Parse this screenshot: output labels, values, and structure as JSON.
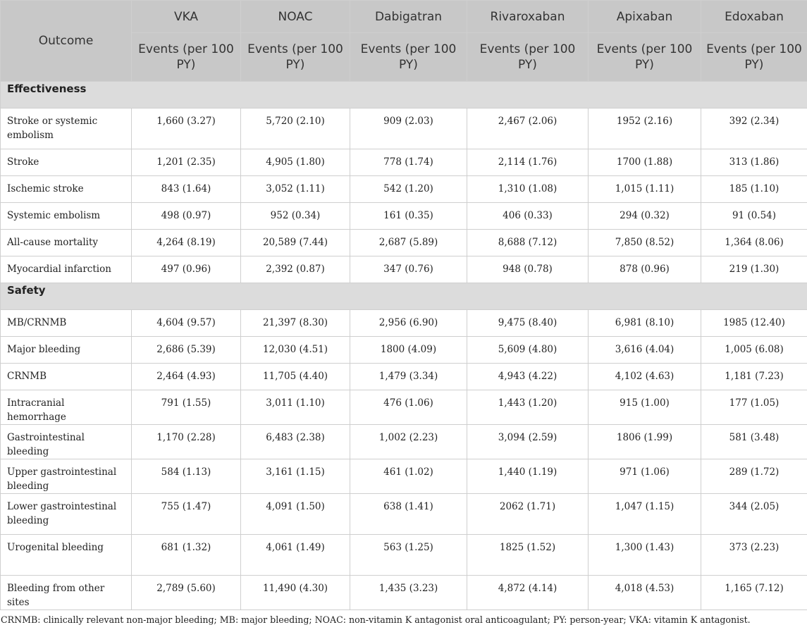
{
  "table": {
    "headers": {
      "outcome": "Outcome",
      "columns": [
        "VKA",
        "NOAC",
        "Dabigatran",
        "Rivaroxaban",
        "Apixaban",
        "Edoxaban"
      ],
      "subheader": "Events (per 100 PY)"
    },
    "sections": [
      {
        "title": "Effectiveness",
        "rows": [
          {
            "outcome": "Stroke or systemic embolism",
            "values": [
              "1,660 (3.27)",
              "5,720 (2.10)",
              "909 (2.03)",
              "2,467 (2.06)",
              "1952 (2.16)",
              "392 (2.34)"
            ]
          },
          {
            "outcome": "Stroke",
            "values": [
              "1,201 (2.35)",
              "4,905 (1.80)",
              "778 (1.74)",
              "2,114 (1.76)",
              "1700 (1.88)",
              "313 (1.86)"
            ]
          },
          {
            "outcome": "Ischemic stroke",
            "values": [
              "843 (1.64)",
              "3,052 (1.11)",
              "542 (1.20)",
              "1,310 (1.08)",
              "1,015 (1.11)",
              "185 (1.10)"
            ]
          },
          {
            "outcome": "Systemic embolism",
            "values": [
              "498 (0.97)",
              "952 (0.34)",
              "161 (0.35)",
              "406 (0.33)",
              "294 (0.32)",
              "91 (0.54)"
            ]
          },
          {
            "outcome": "All-cause mortality",
            "values": [
              "4,264 (8.19)",
              "20,589 (7.44)",
              "2,687 (5.89)",
              "8,688 (7.12)",
              "7,850 (8.52)",
              "1,364 (8.06)"
            ]
          },
          {
            "outcome": "Myocardial infarction",
            "values": [
              "497 (0.96)",
              "2,392 (0.87)",
              "347 (0.76)",
              "948 (0.78)",
              "878 (0.96)",
              "219 (1.30)"
            ]
          }
        ]
      },
      {
        "title": "Safety",
        "rows": [
          {
            "outcome": "MB/CRNMB",
            "values": [
              "4,604 (9.57)",
              "21,397 (8.30)",
              "2,956 (6.90)",
              "9,475 (8.40)",
              "6,981 (8.10)",
              "1985 (12.40)"
            ]
          },
          {
            "outcome": "Major bleeding",
            "values": [
              "2,686 (5.39)",
              "12,030 (4.51)",
              "1800 (4.09)",
              "5,609 (4.80)",
              "3,616 (4.04)",
              "1,005 (6.08)"
            ]
          },
          {
            "outcome": "CRNMB",
            "values": [
              "2,464 (4.93)",
              "11,705 (4.40)",
              "1,479 (3.34)",
              "4,943 (4.22)",
              "4,102 (4.63)",
              "1,181 (7.23)"
            ]
          },
          {
            "outcome": "Intracranial hemorrhage",
            "values": [
              "791 (1.55)",
              "3,011 (1.10)",
              "476 (1.06)",
              "1,443 (1.20)",
              "915 (1.00)",
              "177 (1.05)"
            ]
          },
          {
            "outcome": "Gastrointestinal bleeding",
            "values": [
              "1,170 (2.28)",
              "6,483 (2.38)",
              "1,002 (2.23)",
              "3,094 (2.59)",
              "1806 (1.99)",
              "581 (3.48)"
            ]
          },
          {
            "outcome": "Upper gastrointestinal bleeding",
            "values": [
              "584 (1.13)",
              "3,161 (1.15)",
              "461 (1.02)",
              "1,440 (1.19)",
              "971 (1.06)",
              "289 (1.72)"
            ]
          },
          {
            "outcome": "Lower gastrointestinal bleeding",
            "values": [
              "755 (1.47)",
              "4,091 (1.50)",
              "638 (1.41)",
              "2062 (1.71)",
              "1,047 (1.15)",
              "344 (2.05)"
            ]
          },
          {
            "outcome": "Urogenital bleeding",
            "values": [
              "681 (1.32)",
              "4,061 (1.49)",
              "563 (1.25)",
              "1825 (1.52)",
              "1,300 (1.43)",
              "373 (2.23)"
            ]
          },
          {
            "outcome": "Bleeding from other sites",
            "values": [
              "2,789 (5.60)",
              "11,490 (4.30)",
              "1,435 (3.23)",
              "4,872 (4.14)",
              "4,018 (4.53)",
              "1,165 (7.12)"
            ]
          }
        ]
      }
    ]
  },
  "footnote": "CRNMB: clinically relevant non-major bleeding; MB: major bleeding; NOAC: non-vitamin K antagonist oral anticoagulant; PY: person-year; VKA: vitamin K antagonist."
}
